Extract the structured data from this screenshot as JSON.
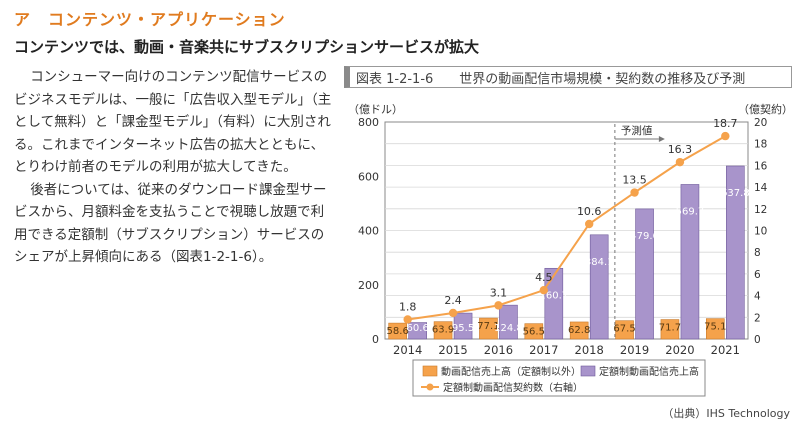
{
  "section_heading": "ア　コンテンツ・アプリケーション",
  "sub_heading": "コンテンツでは、動画・音楽共にサブスクリプションサービスが拡大",
  "paragraphs": [
    "コンシューマー向けのコンテンツ配信サービスのビジネスモデルは、一般に「広告収入型モデル」（主として無料）と「課金型モデル」（有料）に大別される。これまでインターネット広告の拡大とともに、とりわけ前者のモデルの利用が拡大してきた。",
    "後者については、従来のダウンロード課金型サービスから、月額料金を支払うことで視聴し放題で利用できる定額制（サブスクリプション）サービスのシェアが上昇傾向にある（図表1-2-1-6）。"
  ],
  "figure_title": "図表 1-2-1-6　　世界の動画配信市場規模・契約数の推移及び予測",
  "source": "（出典）IHS Technology",
  "chart_data": {
    "type": "bar",
    "categories": [
      "2014",
      "2015",
      "2016",
      "2017",
      "2018",
      "2019",
      "2020",
      "2021"
    ],
    "ylabel": "（億ドル）",
    "y2label": "（億契約）",
    "ylim": [
      0,
      800
    ],
    "y2lim": [
      0,
      20
    ],
    "yticks": [
      "0",
      "200",
      "400",
      "600",
      "800"
    ],
    "y2ticks": [
      "0",
      "2",
      "4",
      "6",
      "8",
      "10",
      "12",
      "14",
      "16",
      "18",
      "20"
    ],
    "forecast_label": "予測値",
    "forecast_start": "2019",
    "grid": true,
    "series": [
      {
        "name": "動画配信売上高（定額制以外）",
        "kind": "bar",
        "color": "#f5a24b",
        "values": [
          58.6,
          63.9,
          77.1,
          56.5,
          62.8,
          67.5,
          71.7,
          75.1
        ],
        "labels": [
          "58.6",
          "63.9",
          "77.1",
          "56.5",
          "62.8",
          "67.5",
          "71.7",
          "75.1"
        ]
      },
      {
        "name": "定額制動画配信売上高",
        "kind": "bar",
        "color": "#a894cb",
        "values": [
          60.6,
          95.5,
          124.8,
          260.7,
          384.1,
          479.6,
          569.7,
          637.8
        ],
        "labels": [
          "60.6",
          "95.5",
          "124.8",
          "260.7",
          "384.1",
          "479.6",
          "569.7",
          "637.8"
        ]
      },
      {
        "name": "定額制動画配信契約数（右軸）",
        "kind": "line",
        "color": "#f5a24b",
        "values": [
          1.8,
          2.4,
          3.1,
          4.5,
          10.6,
          13.5,
          16.3,
          18.7
        ],
        "labels": [
          "1.8",
          "2.4",
          "3.1",
          "4.5",
          "10.6",
          "13.5",
          "16.3",
          "18.7"
        ]
      }
    ],
    "legend": {
      "placement": "bottom",
      "items": [
        {
          "label": "動画配信売上高（定額制以外）",
          "marker": "box",
          "color": "#f5a24b"
        },
        {
          "label": "定額制動画配信売上高",
          "marker": "box",
          "color": "#a894cb"
        },
        {
          "label": "定額制動画配信契約数（右軸）",
          "marker": "line-dot",
          "color": "#f5a24b"
        }
      ]
    }
  }
}
